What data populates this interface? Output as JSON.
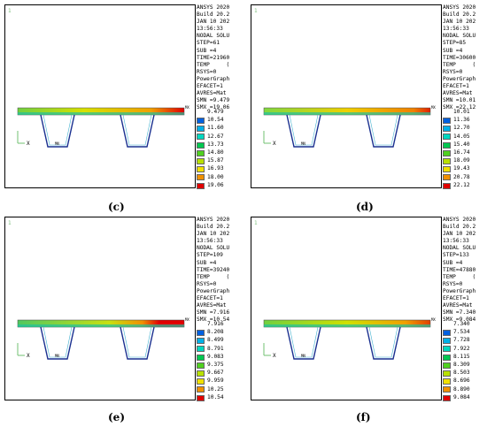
{
  "panels": [
    {
      "caption": "(c)",
      "info": [
        "ANSYS 2020",
        "Build 20.2",
        "JAN 10 202",
        "13:56:33",
        "NODAL SOLU",
        "STEP=61",
        "SUB =4",
        "TIME=21960",
        "TEMP     (",
        "RSYS=0",
        "PowerGraph",
        "EFACET=1",
        "AVRES=Mat",
        "SMN =9.479",
        "SMX =19.06"
      ],
      "legend": [
        "9.479",
        "10.54",
        "11.60",
        "12.67",
        "13.73",
        "14.80",
        "15.87",
        "16.93",
        "18.00",
        "19.06"
      ],
      "mx_label": "MX",
      "mn_label": "MN",
      "axis_x": "X",
      "deck_style": "c"
    },
    {
      "caption": "(d)",
      "info": [
        "ANSYS 2020",
        "Build 20.2",
        "JAN 10 202",
        "13:56:33",
        "NODAL SOLU",
        "STEP=85",
        "SUB =4",
        "TIME=30600",
        "TEMP     (",
        "RSYS=0",
        "PowerGraph",
        "EFACET=1",
        "AVRES=Mat",
        "SMN =10.01",
        "SMX =22.12"
      ],
      "legend": [
        "10.01",
        "11.36",
        "12.70",
        "14.05",
        "15.40",
        "16.74",
        "18.09",
        "19.43",
        "20.78",
        "22.12"
      ],
      "mx_label": "MX",
      "mn_label": "MN",
      "axis_x": "X",
      "deck_style": "d"
    },
    {
      "caption": "(e)",
      "info": [
        "ANSYS 2020",
        "Build 20.2",
        "JAN 10 202",
        "13:56:33",
        "NODAL SOLU",
        "STEP=109",
        "SUB =4",
        "TIME=39240",
        "TEMP     (",
        "RSYS=0",
        "PowerGraph",
        "EFACET=1",
        "AVRES=Mat",
        "SMN =7.916",
        "SMX =10.54"
      ],
      "legend": [
        "7.916",
        "8.208",
        "8.499",
        "8.791",
        "9.083",
        "9.375",
        "9.667",
        "9.959",
        "10.25",
        "10.54"
      ],
      "mx_label": "MX",
      "mn_label": "MN",
      "axis_x": "X",
      "deck_style": "e"
    },
    {
      "caption": "(f)",
      "info": [
        "ANSYS 2020",
        "Build 20.2",
        "JAN 10 202",
        "13:56:33",
        "NODAL SOLU",
        "STEP=133",
        "SUB =4",
        "TIME=47880",
        "TEMP     (",
        "RSYS=0",
        "PowerGraph",
        "EFACET=1",
        "AVRES=Mat",
        "SMN =7.340",
        "SMX =9.084"
      ],
      "legend": [
        "7.340",
        "7.534",
        "7.728",
        "7.922",
        "8.115",
        "8.309",
        "8.503",
        "8.696",
        "8.890",
        "9.084"
      ],
      "mx_label": "MX",
      "mn_label": "MN",
      "axis_x": "X",
      "deck_style": "f"
    }
  ],
  "colors": {
    "legend": [
      "#0000c8",
      "#0060e0",
      "#00b0e8",
      "#00d8c0",
      "#00c850",
      "#50d020",
      "#b8e000",
      "#f0e000",
      "#f09000",
      "#e00000"
    ]
  }
}
